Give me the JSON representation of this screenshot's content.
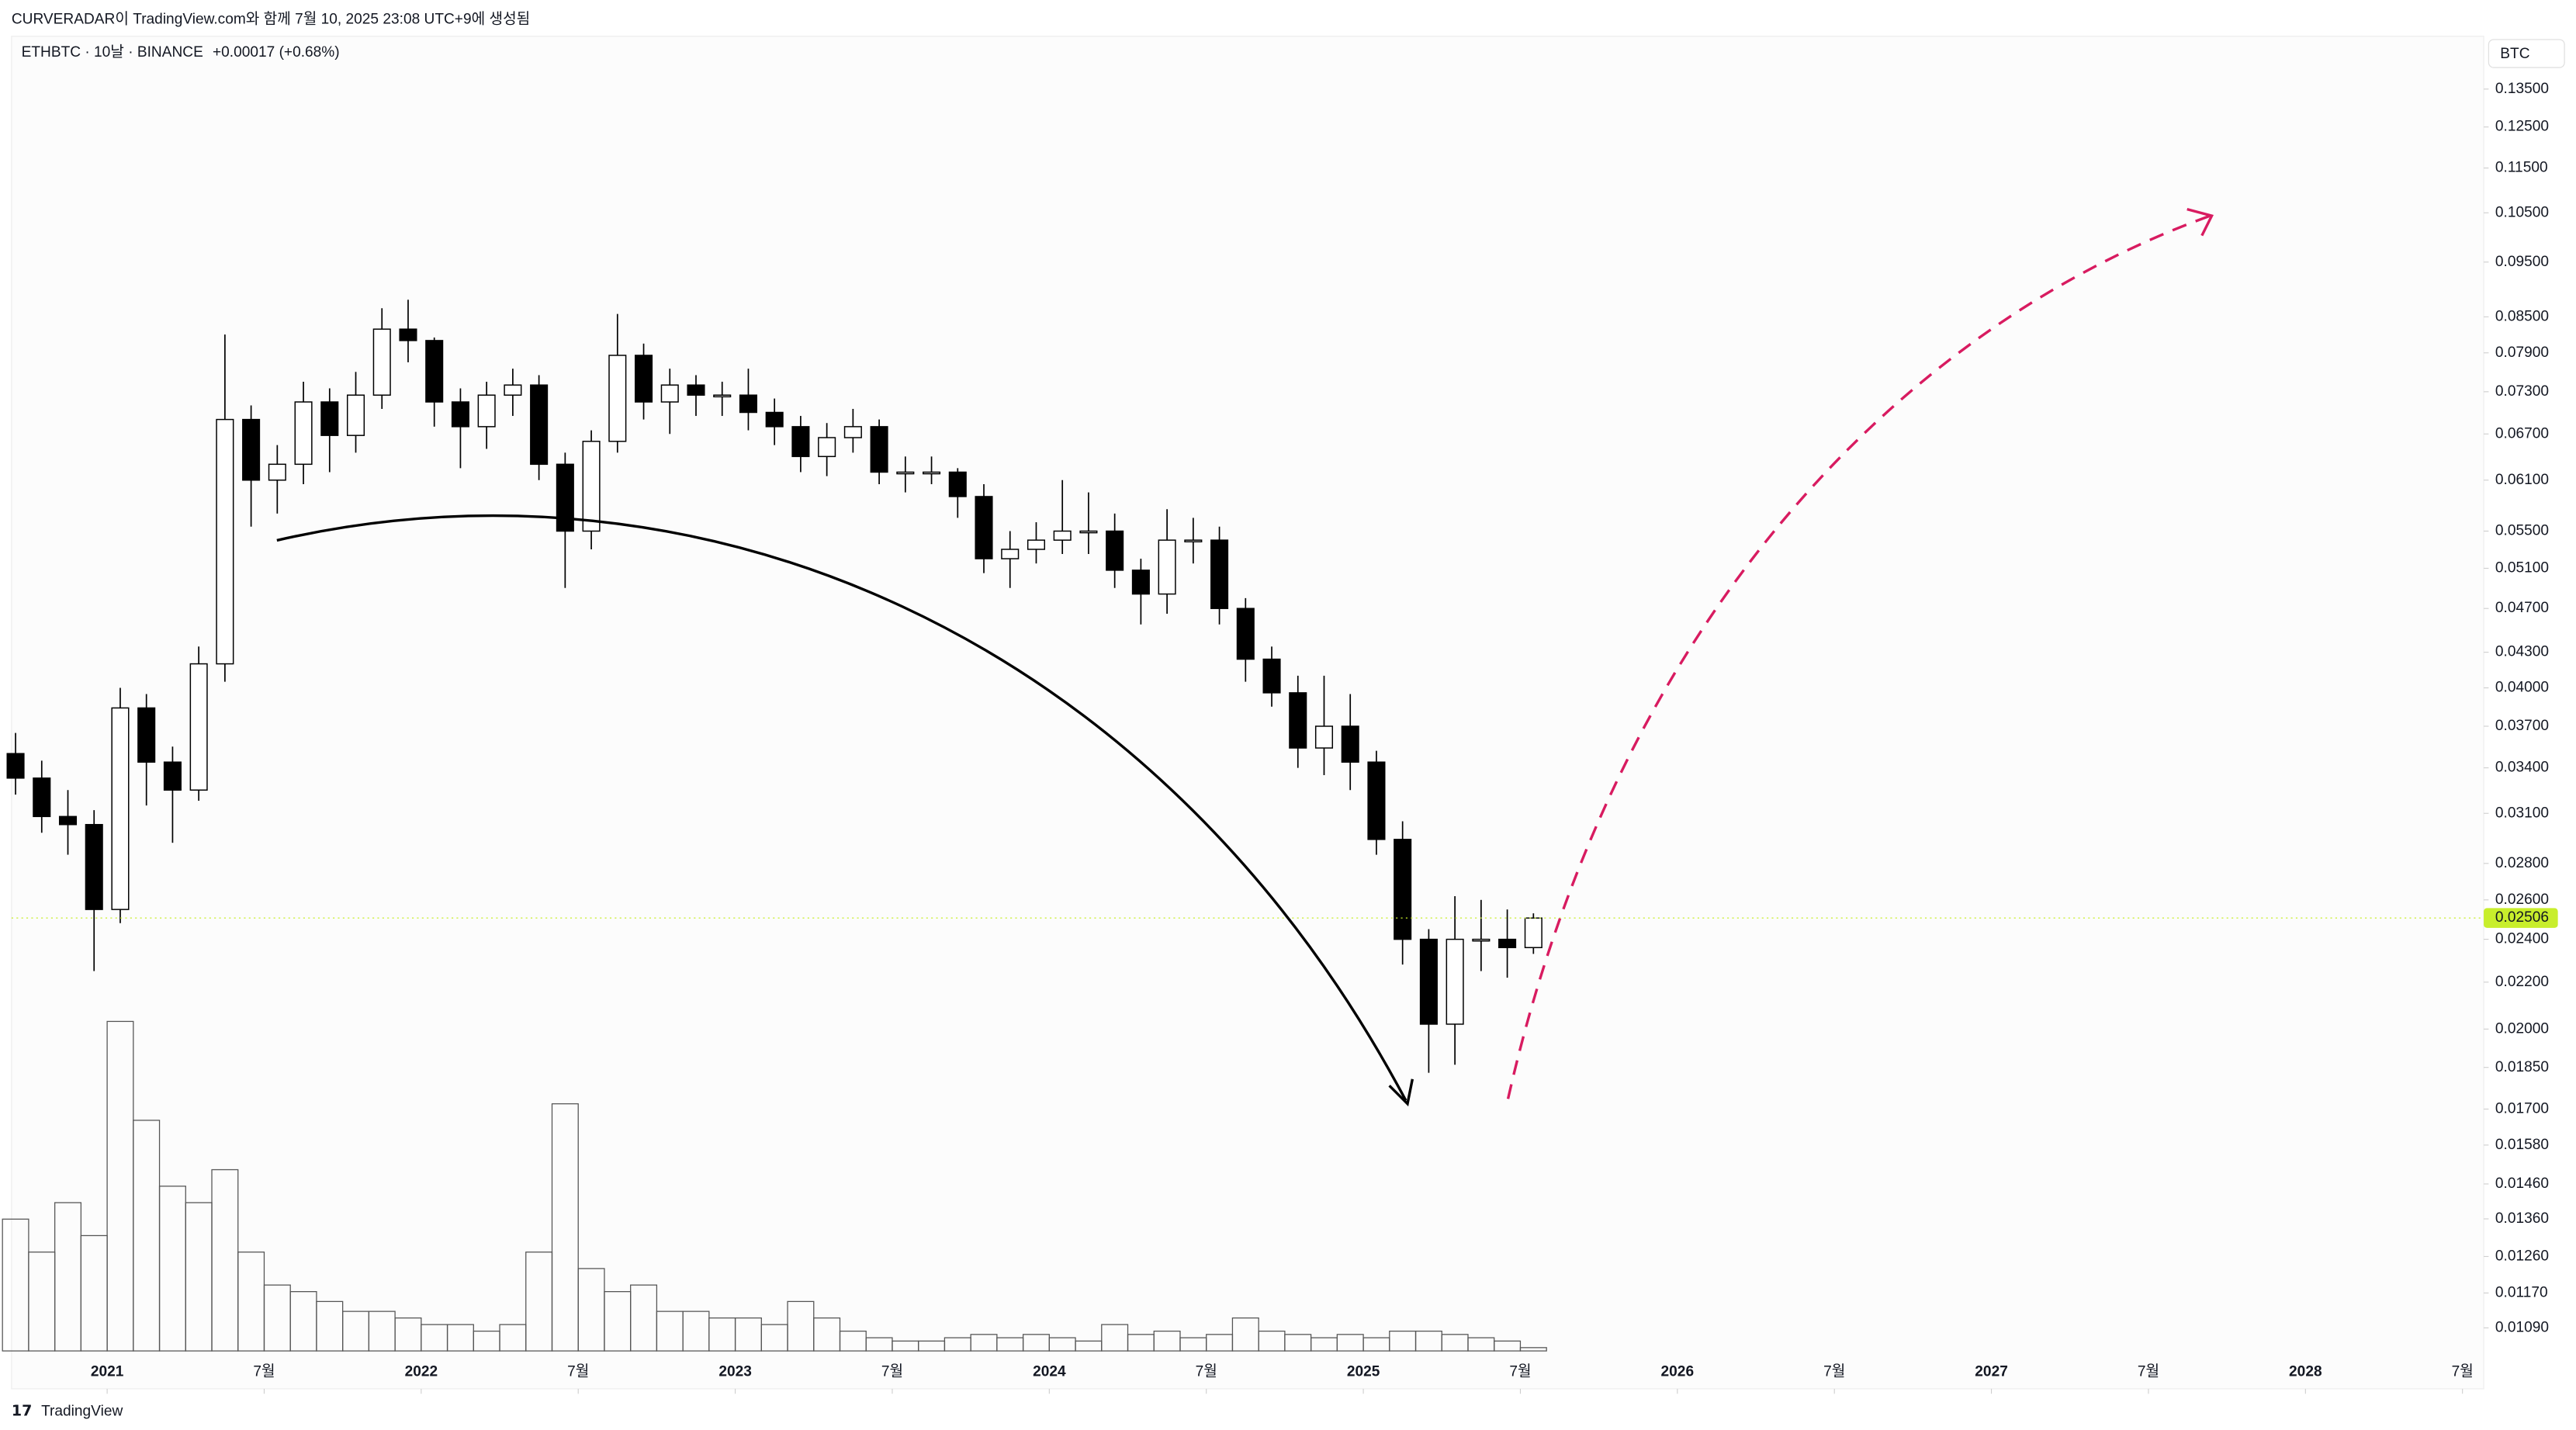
{
  "chart_data": {
    "type": "candlestick",
    "header_note": "CURVERADAR이 TradingView.com와 함께 7월 10, 2025 23:08 UTC+9에 생성됨",
    "title": "ETHBTC · 10날 · BINANCE",
    "change": "+0.00017 (+0.68%)",
    "unit": "BTC",
    "watermark": "TradingView",
    "log_scale": true,
    "grid": false,
    "up_color": "#ffffff",
    "down_color": "#000000",
    "wick_color": "#000000",
    "last_price": 0.02506,
    "last_price_color": "#c8ee2c",
    "x": [
      "2020-09",
      "2020-10",
      "2020-11",
      "2020-12",
      "2021-01",
      "2021-02",
      "2021-03",
      "2021-04",
      "2021-05",
      "2021-06",
      "2021-07",
      "2021-08",
      "2021-09",
      "2021-10",
      "2021-11",
      "2021-12",
      "2022-01",
      "2022-02",
      "2022-03",
      "2022-04",
      "2022-05",
      "2022-06",
      "2022-07",
      "2022-08",
      "2022-09",
      "2022-10",
      "2022-11",
      "2022-12",
      "2023-01",
      "2023-02",
      "2023-03",
      "2023-04",
      "2023-05",
      "2023-06",
      "2023-07",
      "2023-08",
      "2023-09",
      "2023-10",
      "2023-11",
      "2023-12",
      "2024-01",
      "2024-02",
      "2024-03",
      "2024-04",
      "2024-05",
      "2024-06",
      "2024-07",
      "2024-08",
      "2024-09",
      "2024-10",
      "2024-11",
      "2024-12",
      "2025-01",
      "2025-02",
      "2025-03",
      "2025-04",
      "2025-05",
      "2025-06",
      "2025-07"
    ],
    "open": [
      0.035,
      0.0333,
      0.0308,
      0.0303,
      0.0255,
      0.0384,
      0.0344,
      0.0325,
      0.042,
      0.069,
      0.061,
      0.063,
      0.0715,
      0.0668,
      0.0725,
      0.0829,
      0.081,
      0.0715,
      0.068,
      0.0725,
      0.074,
      0.063,
      0.055,
      0.066,
      0.0786,
      0.0715,
      0.074,
      0.0725,
      0.0725,
      0.07,
      0.068,
      0.064,
      0.0665,
      0.068,
      0.062,
      0.062,
      0.062,
      0.059,
      0.052,
      0.053,
      0.054,
      0.055,
      0.055,
      0.0508,
      0.0484,
      0.054,
      0.054,
      0.047,
      0.0424,
      0.0396,
      0.0354,
      0.037,
      0.0344,
      0.0294,
      0.024,
      0.0202,
      0.024,
      0.024,
      0.0236
    ],
    "high": [
      0.0365,
      0.0345,
      0.0325,
      0.0312,
      0.04,
      0.0395,
      0.0355,
      0.0435,
      0.082,
      0.071,
      0.0655,
      0.0745,
      0.0735,
      0.076,
      0.0865,
      0.088,
      0.0815,
      0.0735,
      0.0745,
      0.0765,
      0.0755,
      0.0645,
      0.0675,
      0.0855,
      0.0805,
      0.0765,
      0.0755,
      0.0745,
      0.0765,
      0.072,
      0.0695,
      0.0685,
      0.0705,
      0.069,
      0.064,
      0.064,
      0.0625,
      0.0605,
      0.055,
      0.056,
      0.061,
      0.0595,
      0.057,
      0.052,
      0.0575,
      0.0565,
      0.0555,
      0.048,
      0.0435,
      0.041,
      0.041,
      0.0395,
      0.0352,
      0.0305,
      0.0245,
      0.0262,
      0.026,
      0.0255,
      0.0253
    ],
    "low": [
      0.0322,
      0.0298,
      0.0285,
      0.0225,
      0.0248,
      0.0315,
      0.0292,
      0.0318,
      0.0405,
      0.0555,
      0.057,
      0.0605,
      0.062,
      0.0645,
      0.0705,
      0.0775,
      0.068,
      0.0625,
      0.065,
      0.0695,
      0.061,
      0.049,
      0.053,
      0.0645,
      0.069,
      0.067,
      0.0695,
      0.0695,
      0.0675,
      0.0655,
      0.062,
      0.0615,
      0.0645,
      0.0605,
      0.0595,
      0.0605,
      0.0565,
      0.0505,
      0.049,
      0.0515,
      0.0525,
      0.0525,
      0.049,
      0.0455,
      0.0465,
      0.0515,
      0.0455,
      0.0405,
      0.0385,
      0.034,
      0.0335,
      0.0325,
      0.0285,
      0.0228,
      0.0183,
      0.0186,
      0.0225,
      0.0222,
      0.0233
    ],
    "close": [
      0.0333,
      0.0308,
      0.0303,
      0.0255,
      0.0384,
      0.0344,
      0.0325,
      0.042,
      0.069,
      0.061,
      0.063,
      0.0715,
      0.0668,
      0.0725,
      0.0829,
      0.081,
      0.0715,
      0.068,
      0.0725,
      0.074,
      0.063,
      0.055,
      0.066,
      0.0786,
      0.0715,
      0.074,
      0.0725,
      0.0725,
      0.07,
      0.068,
      0.064,
      0.0665,
      0.068,
      0.062,
      0.062,
      0.062,
      0.059,
      0.052,
      0.053,
      0.054,
      0.055,
      0.055,
      0.0508,
      0.0484,
      0.054,
      0.054,
      0.047,
      0.0424,
      0.0396,
      0.0354,
      0.037,
      0.0344,
      0.0294,
      0.024,
      0.0202,
      0.024,
      0.024,
      0.0236,
      0.02506
    ],
    "volume": [
      40,
      30,
      45,
      35,
      100,
      70,
      50,
      45,
      55,
      30,
      20,
      18,
      15,
      12,
      12,
      10,
      8,
      8,
      6,
      8,
      30,
      75,
      25,
      18,
      20,
      12,
      12,
      10,
      10,
      8,
      15,
      10,
      6,
      4,
      3,
      3,
      4,
      5,
      4,
      5,
      4,
      3,
      8,
      5,
      6,
      4,
      5,
      10,
      6,
      5,
      4,
      5,
      4,
      6,
      6,
      5,
      4,
      3,
      1
    ],
    "xlim": [
      "2020-09",
      "2028-08"
    ],
    "xticks": [
      {
        "value": "2021-01",
        "label": "2021"
      },
      {
        "value": "2021-07",
        "label": "7월"
      },
      {
        "value": "2022-01",
        "label": "2022"
      },
      {
        "value": "2022-07",
        "label": "7월"
      },
      {
        "value": "2023-01",
        "label": "2023"
      },
      {
        "value": "2023-07",
        "label": "7월"
      },
      {
        "value": "2024-01",
        "label": "2024"
      },
      {
        "value": "2024-07",
        "label": "7월"
      },
      {
        "value": "2025-01",
        "label": "2025"
      },
      {
        "value": "2025-07",
        "label": "7월"
      },
      {
        "value": "2026-01",
        "label": "2026"
      },
      {
        "value": "2026-07",
        "label": "7월"
      },
      {
        "value": "2027-01",
        "label": "2027"
      },
      {
        "value": "2027-07",
        "label": "7월"
      },
      {
        "value": "2028-01",
        "label": "2028"
      },
      {
        "value": "2028-07",
        "label": "7월"
      }
    ],
    "ylim": [
      0.00963,
      0.1503
    ],
    "yticks": [
      {
        "value": 0.135,
        "label": "0.13500"
      },
      {
        "value": 0.125,
        "label": "0.12500"
      },
      {
        "value": 0.115,
        "label": "0.11500"
      },
      {
        "value": 0.105,
        "label": "0.10500"
      },
      {
        "value": 0.095,
        "label": "0.09500"
      },
      {
        "value": 0.085,
        "label": "0.08500"
      },
      {
        "value": 0.079,
        "label": "0.07900"
      },
      {
        "value": 0.073,
        "label": "0.07300"
      },
      {
        "value": 0.067,
        "label": "0.06700"
      },
      {
        "value": 0.061,
        "label": "0.06100"
      },
      {
        "value": 0.055,
        "label": "0.05500"
      },
      {
        "value": 0.051,
        "label": "0.05100"
      },
      {
        "value": 0.047,
        "label": "0.04700"
      },
      {
        "value": 0.043,
        "label": "0.04300"
      },
      {
        "value": 0.04,
        "label": "0.04000"
      },
      {
        "value": 0.037,
        "label": "0.03700"
      },
      {
        "value": 0.034,
        "label": "0.03400"
      },
      {
        "value": 0.031,
        "label": "0.03100"
      },
      {
        "value": 0.028,
        "label": "0.02800"
      },
      {
        "value": 0.026,
        "label": "0.02600"
      },
      {
        "value": 0.024,
        "label": "0.02400"
      },
      {
        "value": 0.022,
        "label": "0.02200"
      },
      {
        "value": 0.02,
        "label": "0.02000"
      },
      {
        "value": 0.0185,
        "label": "0.01850"
      },
      {
        "value": 0.017,
        "label": "0.01700"
      },
      {
        "value": 0.0158,
        "label": "0.01580"
      },
      {
        "value": 0.0146,
        "label": "0.01460"
      },
      {
        "value": 0.0136,
        "label": "0.01360"
      },
      {
        "value": 0.0126,
        "label": "0.01260"
      },
      {
        "value": 0.0117,
        "label": "0.01170"
      },
      {
        "value": 0.0109,
        "label": "0.01090"
      }
    ]
  }
}
